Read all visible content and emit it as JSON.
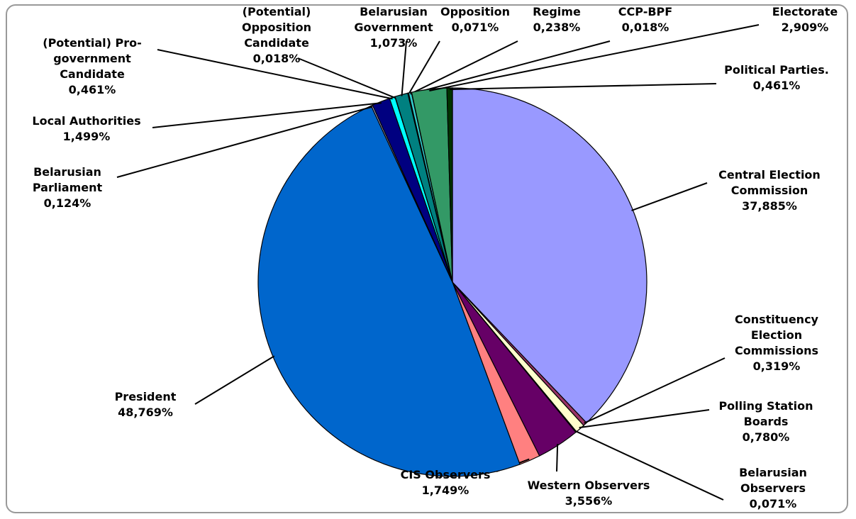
{
  "chart_data": {
    "type": "pie",
    "categories": [
      "Central Election Commission",
      "Constituency Election Commissions",
      "Polling Station Boards",
      "Belarusian Observers",
      "Western Observers",
      "CIS Observers",
      "President",
      "Belarusian Parliament",
      "Local Authorities",
      "(Potential) Pro-government Candidate",
      "(Potential) Opposition Candidate",
      "Belarusian Government",
      "Opposition",
      "Regime",
      "CCP-BPF",
      "Electorate",
      "Political Parties."
    ],
    "values": [
      37.885,
      0.319,
      0.78,
      0.071,
      3.556,
      1.749,
      48.769,
      0.124,
      1.499,
      0.461,
      0.018,
      1.073,
      0.071,
      0.238,
      0.018,
      2.909,
      0.461
    ],
    "value_labels": [
      "37,885%",
      "0,319%",
      "0,780%",
      "0,071%",
      "3,556%",
      "1,749%",
      "48,769%",
      "0,124%",
      "1,499%",
      "0,461%",
      "0,018%",
      "1,073%",
      "0,071%",
      "0,238%",
      "0,018%",
      "2,909%",
      "0,461%"
    ],
    "colors": [
      "#9999ff",
      "#993366",
      "#ffffcc",
      "#ccffff",
      "#660066",
      "#ff8080",
      "#0066cc",
      "#ccccff",
      "#000080",
      "#00ffff",
      "#800080",
      "#008080",
      "#0000ff",
      "#33cccc",
      "#ccffcc",
      "#339966",
      "#003300"
    ]
  }
}
